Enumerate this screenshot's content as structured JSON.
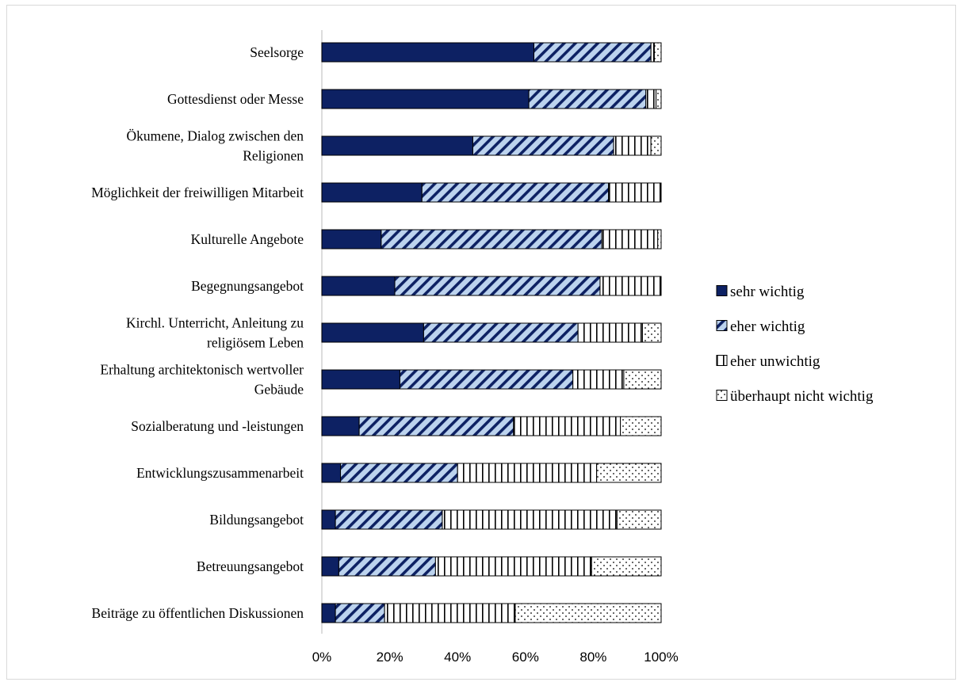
{
  "chart_data": {
    "type": "bar",
    "orientation": "horizontal",
    "stacked": true,
    "percent_stacked": true,
    "categories": [
      "Seelsorge",
      "Gottesdienst oder Messe",
      "Ökumene, Dialog zwischen den Religionen",
      "Möglichkeit der freiwilligen Mitarbeit",
      "Kulturelle Angebote",
      "Begegnungsangebot",
      "Kirchl. Unterricht, Anleitung zu religiösem Leben",
      "Erhaltung architektonisch wertvoller Gebäude",
      "Sozialberatung und -leistungen",
      "Entwicklungszusammenarbeit",
      "Bildungsangebot",
      "Betreuungsangebot",
      "Beiträge zu öffentlichen Diskussionen"
    ],
    "category_lines": [
      [
        "Seelsorge"
      ],
      [
        "Gottesdienst oder Messe"
      ],
      [
        "Ökumene, Dialog zwischen den",
        "Religionen"
      ],
      [
        "Möglichkeit der freiwilligen Mitarbeit"
      ],
      [
        "Kulturelle Angebote"
      ],
      [
        "Begegnungsangebot"
      ],
      [
        "Kirchl. Unterricht, Anleitung zu",
        "religiösem Leben"
      ],
      [
        "Erhaltung architektonisch wertvoller",
        "Gebäude"
      ],
      [
        "Sozialberatung und -leistungen"
      ],
      [
        "Entwicklungszusammenarbeit"
      ],
      [
        "Bildungsangebot"
      ],
      [
        "Betreuungsangebot"
      ],
      [
        "Beiträge zu öffentlichen Diskussionen"
      ]
    ],
    "series": [
      {
        "name": "sehr wichtig",
        "pattern": "solid",
        "values": [
          62.5,
          61,
          44.5,
          29.5,
          17.5,
          21.5,
          30,
          23,
          11,
          5.5,
          4,
          5,
          4
        ]
      },
      {
        "name": "eher wichtig",
        "pattern": "diagonal",
        "values": [
          34.5,
          34.5,
          41.5,
          55,
          65,
          60.5,
          45.5,
          51,
          45.5,
          34.5,
          31.5,
          28.5,
          14.5
        ]
      },
      {
        "name": "eher unwichtig",
        "pattern": "vertical",
        "values": [
          1,
          3,
          11,
          15.5,
          16.5,
          18,
          19,
          15,
          31.5,
          41,
          51.5,
          46,
          38.5
        ]
      },
      {
        "name": "überhaupt nicht wichtig",
        "pattern": "dots",
        "values": [
          2,
          1.5,
          3,
          0,
          1,
          0,
          5.5,
          11,
          12,
          19,
          13,
          20.5,
          43
        ]
      }
    ],
    "xlim": [
      0,
      100
    ],
    "xticks": [
      "0%",
      "20%",
      "40%",
      "60%",
      "80%",
      "100%"
    ],
    "title": "",
    "xlabel": "",
    "ylabel": "",
    "legend_position": "right",
    "grid": false,
    "colors": {
      "dark": "#0d2163",
      "light": "#bcd3ee",
      "outline": "#000000"
    }
  }
}
